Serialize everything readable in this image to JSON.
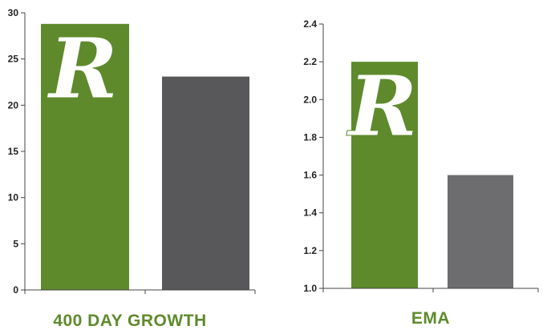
{
  "colors": {
    "accent": "#5e8a2c",
    "bar_dark_gray": "#58585a",
    "bar_gray": "#6d6d70",
    "axis": "#444444"
  },
  "chart_data": [
    {
      "type": "bar",
      "title": "400 DAY GROWTH",
      "categories": [
        "",
        ""
      ],
      "values": [
        28.8,
        23.1
      ],
      "bar_colors": [
        "#5e8a2c",
        "#58585a"
      ],
      "ylim": [
        0,
        30
      ],
      "yticks": [
        "0",
        "5",
        "10",
        "15",
        "20",
        "25",
        "30"
      ],
      "logo": "R",
      "grid": false
    },
    {
      "type": "bar",
      "title": "EMA",
      "categories": [
        "",
        ""
      ],
      "values": [
        2.2,
        1.6
      ],
      "bar_colors": [
        "#5e8a2c",
        "#6d6d70"
      ],
      "ylim": [
        1.0,
        2.4
      ],
      "yticks": [
        "1.0",
        "1.2",
        "1.4",
        "1.6",
        "1.8",
        "2.0",
        "2.2",
        "2.4"
      ],
      "logo": "R",
      "grid": false
    }
  ]
}
